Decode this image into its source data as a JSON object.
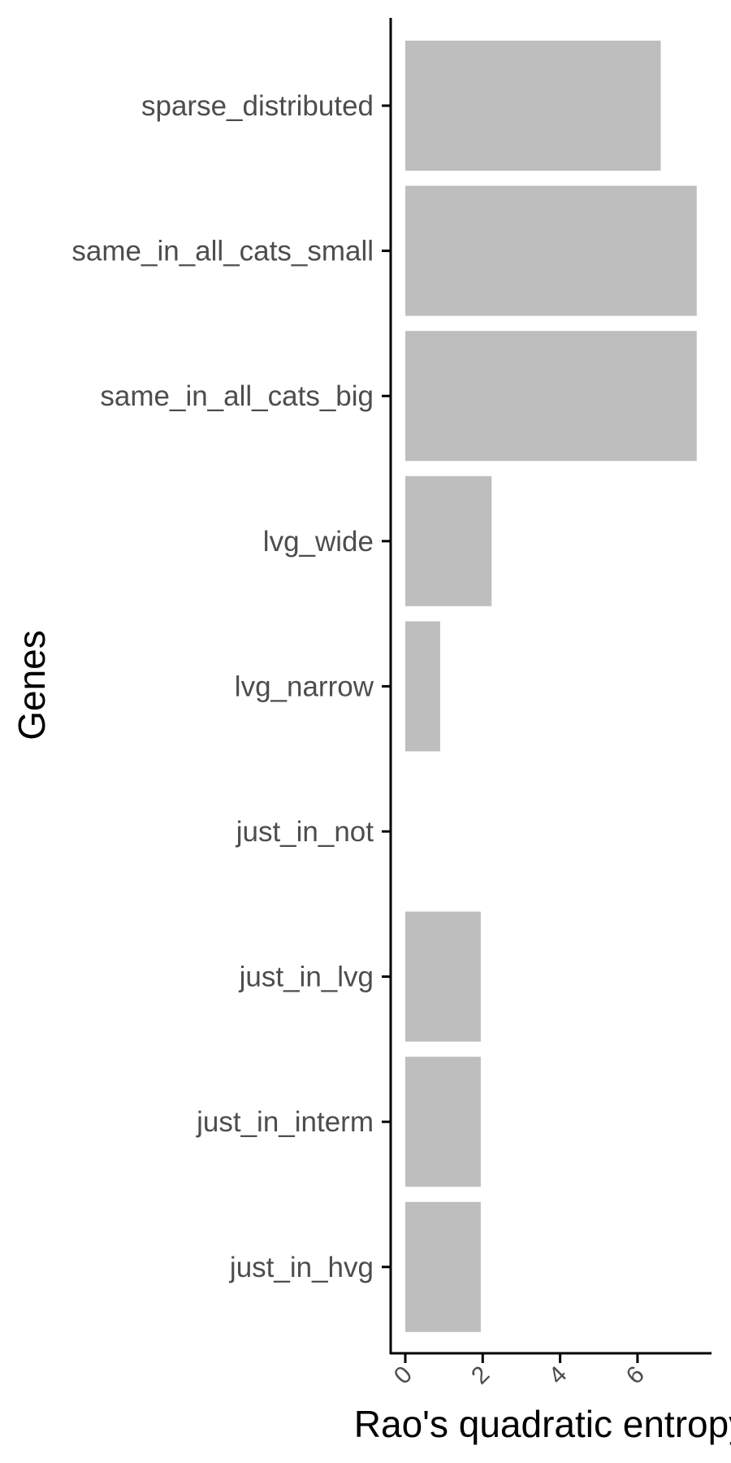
{
  "chart_data": {
    "type": "bar",
    "orientation": "horizontal",
    "categories": [
      "sparse_distributed",
      "same_in_all_cats_small",
      "same_in_all_cats_big",
      "lvg_wide",
      "lvg_narrow",
      "just_in_not",
      "just_in_lvg",
      "just_in_interm",
      "just_in_hvg"
    ],
    "values": [
      6.6,
      7.53,
      7.53,
      2.23,
      0.9,
      0,
      1.95,
      1.95,
      1.95
    ],
    "xlabel": "Rao's quadratic entropy",
    "ylabel": "Genes",
    "xticks": [
      "0",
      "2",
      "4",
      "6"
    ],
    "xlim": [
      0,
      7.53
    ],
    "grid": false,
    "bar_color": "#bebebe",
    "axis_color": "#000000"
  }
}
